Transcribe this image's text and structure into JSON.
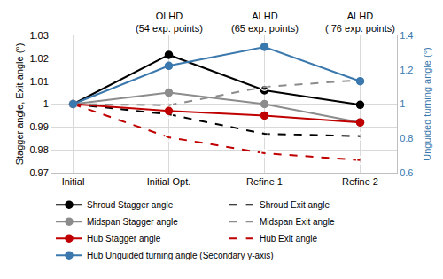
{
  "chart_data": {
    "type": "line",
    "categories": [
      "Initial",
      "Initial Opt.",
      "Refine 1",
      "Refine 2"
    ],
    "y_label": "Stagger angle, Exit angle (°)",
    "y2_label": "Unguided turning angle (°)",
    "ylim": [
      0.97,
      1.03
    ],
    "yticks": [
      0.97,
      0.98,
      0.99,
      1,
      1.01,
      1.02,
      1.03
    ],
    "y2lim": [
      0.6,
      1.4
    ],
    "y2ticks": [
      0.6,
      0.8,
      1,
      1.2,
      1.4
    ],
    "grid": true,
    "legend": "bottom",
    "annotations": [
      {
        "category": "Initial Opt.",
        "lines": [
          "OLHD",
          "(54 exp. points)"
        ]
      },
      {
        "category": "Refine 1",
        "lines": [
          "ALHD",
          "(65 exp. points)"
        ]
      },
      {
        "category": "Refine 2",
        "lines": [
          "ALHD",
          "( 76 exp. points)"
        ]
      }
    ],
    "series": [
      {
        "name": "Shroud Stagger angle",
        "color": "#000000",
        "marker": "circle",
        "line_style": "solid",
        "values": [
          1,
          1.0215,
          1.006,
          0.9997
        ]
      },
      {
        "name": "Shroud Exit angle",
        "color": "#000000",
        "marker": "circle-open",
        "line_style": "dash",
        "values": [
          1,
          0.9955,
          0.987,
          0.986
        ]
      },
      {
        "name": "Midspan Stagger angle",
        "color": "#8c8c8c",
        "marker": "circle",
        "line_style": "solid",
        "values": [
          1,
          1.005,
          1.0,
          0.992
        ]
      },
      {
        "name": "Midspan Exit angle",
        "color": "#8c8c8c",
        "marker": "circle-open",
        "line_style": "dash",
        "values": [
          1,
          0.9995,
          1.0075,
          1.0105
        ]
      },
      {
        "name": "Hub Stagger angle",
        "color": "#c00000",
        "marker": "circle",
        "line_style": "solid",
        "values": [
          1,
          0.997,
          0.995,
          0.992
        ]
      },
      {
        "name": "Hub Exit angle",
        "color": "#c00000",
        "marker": "circle-open",
        "line_style": "dash",
        "values": [
          1,
          0.9855,
          0.9785,
          0.9755
        ]
      },
      {
        "name": "Hub Unguided turning angle (Secondary y-axis)",
        "color": "#3a78ad",
        "marker": "circle",
        "line_style": "solid",
        "axis": "y2",
        "values": [
          1,
          1.223,
          1.333,
          1.133
        ]
      }
    ]
  }
}
